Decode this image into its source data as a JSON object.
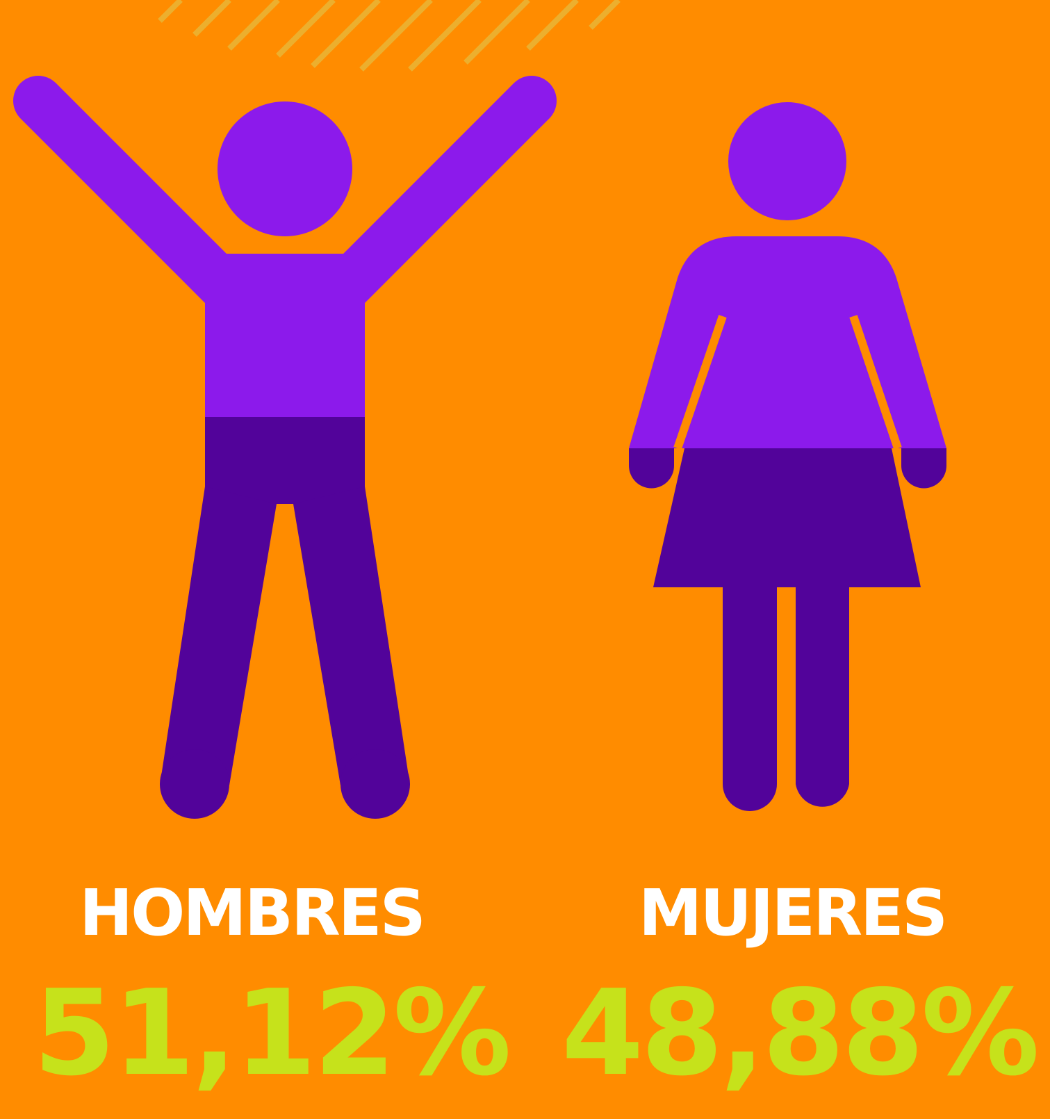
{
  "items": [
    {
      "label": "HOMBRES",
      "value": "51,12%"
    },
    {
      "label": "MUJERES",
      "value": "48,88%"
    }
  ]
}
